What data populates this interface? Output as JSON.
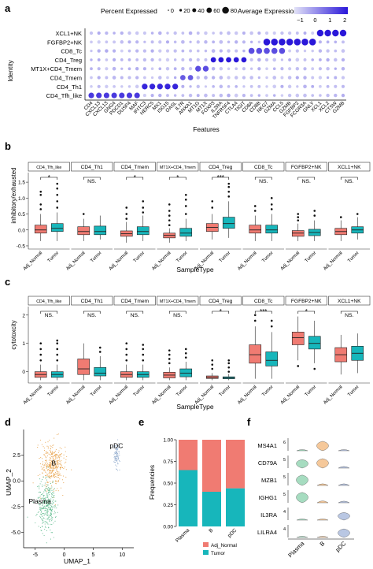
{
  "panels": {
    "a": {
      "letter": "a",
      "legend_pct_title": "Percent Expressed",
      "legend_pct_values": [
        "0",
        "20",
        "40",
        "60",
        "80"
      ],
      "legend_avg_title": "Average Expression",
      "legend_avg_ticks": [
        "−1",
        "0",
        "1",
        "2"
      ],
      "ylabel": "Identity",
      "xlabel": "Features",
      "rows": [
        "XCL1+NK",
        "FGFBP2+NK",
        "CD8_Tc",
        "CD4_Treg",
        "MT1X+CD4_Tmem",
        "CD4_Tmem",
        "CD4_Th1",
        "CD4_Tfh_like"
      ],
      "features": [
        "CD4",
        "CXCL13",
        "CXCL13",
        "GNG4",
        "PDCD1",
        "DUSP4",
        "MAF",
        "IFITC3",
        "HERC5",
        "MX1",
        "ISG15",
        "OASL",
        "IL7R",
        "ANXA1",
        "MT1G",
        "MT1X",
        "FOXP3",
        "IL2RA",
        "TNFRSF4",
        "CTLA4",
        "TIGIT",
        "CD8A",
        "CD8B",
        "NKG7",
        "GZMA",
        "CCL5",
        "GZMB",
        "FGFBP2",
        "FCGR3A",
        "GNLY",
        "XCL1",
        "XCL2",
        "CTSW",
        "GZMB"
      ],
      "colors": {
        "low": "#e2e2f7",
        "high": "#2a17d9"
      }
    },
    "b": {
      "letter": "b",
      "ylabel": "inhibitory/exhausted",
      "xlabel": "SampleType",
      "yticks": [
        "-0.5",
        "0.0",
        "0.5",
        "1.0",
        "1.5"
      ],
      "xticks": [
        "Adj_Normal",
        "Tumor"
      ],
      "facets": [
        {
          "label": "CD4_Tfh_like",
          "sig": "*"
        },
        {
          "label": "CD4_Th1",
          "sig": "NS."
        },
        {
          "label": "CD4_Tmem",
          "sig": "*"
        },
        {
          "label": "MT1X+CD4_Tmem",
          "sig": "*"
        },
        {
          "label": "CD4_Treg",
          "sig": "***"
        },
        {
          "label": "CD8_Tc",
          "sig": "NS."
        },
        {
          "label": "FGFBP2+NK",
          "sig": "NS."
        },
        {
          "label": "XCL1+NK",
          "sig": "NS."
        }
      ]
    },
    "c": {
      "letter": "c",
      "ylabel": "cytotoxcity",
      "xlabel": "SampleType",
      "yticks": [
        "0",
        "1",
        "2"
      ],
      "xticks": [
        "Adj_Normal",
        "Tumor"
      ],
      "facets": [
        {
          "label": "CD4_Tfh_like",
          "sig": "NS."
        },
        {
          "label": "CD4_Th1",
          "sig": "NS."
        },
        {
          "label": "CD4_Tmem",
          "sig": "NS."
        },
        {
          "label": "MT1X+CD4_Tmem",
          "sig": "NS."
        },
        {
          "label": "CD4_Treg",
          "sig": "*"
        },
        {
          "label": "CD8_Tc",
          "sig": "***"
        },
        {
          "label": "FGFBP2+NK",
          "sig": "*"
        },
        {
          "label": "XCL1+NK",
          "sig": "NS."
        }
      ]
    },
    "d": {
      "letter": "d",
      "xlabel": "UMAP_1",
      "ylabel": "UMAP_2",
      "xticks": [
        "-5",
        "0",
        "5",
        "10"
      ],
      "yticks": [
        "-5.0",
        "-2.5",
        "0.0",
        "2.5"
      ],
      "clusters": [
        "B",
        "Plasma",
        "pDC"
      ]
    },
    "e": {
      "letter": "e",
      "ylabel": "Frequencies",
      "yticks": [
        "0.00",
        "0.25",
        "0.50",
        "0.75",
        "1.00"
      ],
      "legend": [
        "Adj_Normal",
        "Tumor"
      ]
    },
    "f": {
      "letter": "f",
      "genes": [
        "MS4A1",
        "CD79A",
        "MZB1",
        "IGHG1",
        "IL3RA",
        "LILRA4"
      ],
      "scales": [
        "6",
        "5",
        "5",
        "5",
        "4",
        "4"
      ],
      "xticks": [
        "Plasma",
        "B",
        "pDC"
      ]
    }
  },
  "chart_data": [
    {
      "panel": "a",
      "type": "heatmap",
      "subtype": "dotplot",
      "y_categories": [
        "XCL1+NK",
        "FGFBP2+NK",
        "CD8_Tc",
        "CD4_Treg",
        "MT1X+CD4_Tmem",
        "CD4_Tmem",
        "CD4_Th1",
        "CD4_Tfh_like"
      ],
      "x_categories": [
        "CD4",
        "CXCL13",
        "CXCL13",
        "GNG4",
        "PDCD1",
        "DUSP4",
        "MAF",
        "IFITC3",
        "HERC5",
        "MX1",
        "ISG15",
        "OASL",
        "IL7R",
        "ANXA1",
        "MT1G",
        "MT1X",
        "FOXP3",
        "IL2RA",
        "TNFRSF4",
        "CTLA4",
        "TIGIT",
        "CD8A",
        "CD8B",
        "NKG7",
        "GZMA",
        "CCL5",
        "GZMB",
        "FGFBP2",
        "FCGR3A",
        "GNLY",
        "XCL1",
        "XCL2",
        "CTSW",
        "GZMB"
      ],
      "highlights": [
        {
          "row": "CD4_Tfh_like",
          "cols": [
            0,
            1,
            2,
            3,
            4,
            5,
            6
          ],
          "avg": 1.5,
          "pct": 50
        },
        {
          "row": "CD4_Th1",
          "cols": [
            7,
            8,
            9,
            10,
            11
          ],
          "avg": 1.8,
          "pct": 55
        },
        {
          "row": "CD4_Tmem",
          "cols": [
            12,
            13
          ],
          "avg": 1.0,
          "pct": 45
        },
        {
          "row": "MT1X+CD4_Tmem",
          "cols": [
            14,
            15
          ],
          "avg": 1.2,
          "pct": 55
        },
        {
          "row": "CD4_Treg",
          "cols": [
            16,
            17,
            18,
            19,
            20
          ],
          "avg": 2.0,
          "pct": 45
        },
        {
          "row": "CD8_Tc",
          "cols": [
            21,
            22,
            23,
            24,
            25
          ],
          "avg": 1.2,
          "pct": 60
        },
        {
          "row": "FGFBP2+NK",
          "cols": [
            23,
            24,
            25,
            26,
            27,
            28,
            29
          ],
          "avg": 2.0,
          "pct": 80
        },
        {
          "row": "XCL1+NK",
          "cols": [
            30,
            31,
            32,
            33
          ],
          "avg": 2.0,
          "pct": 75
        }
      ],
      "color_range": [
        -1,
        2
      ],
      "size_range": [
        0,
        80
      ]
    },
    {
      "panel": "b",
      "type": "box",
      "ylabel": "inhibitory/exhausted",
      "ylim": [
        -0.6,
        1.8
      ],
      "series_names": [
        "Adj_Normal",
        "Tumor"
      ],
      "facets": [
        {
          "label": "CD4_Tfh_like",
          "normal": [
            -0.35,
            -0.1,
            0.0,
            0.15,
            0.5
          ],
          "tumor": [
            -0.35,
            -0.05,
            0.05,
            0.2,
            0.55
          ],
          "out_n": [
            0.65,
            0.8,
            1.1,
            1.2
          ],
          "out_t": [
            0.7,
            0.9,
            1.1,
            1.3,
            1.45
          ]
        },
        {
          "label": "CD4_Th1",
          "normal": [
            -0.35,
            -0.15,
            -0.05,
            0.1,
            0.35
          ],
          "tumor": [
            -0.3,
            -0.15,
            -0.05,
            0.12,
            0.45
          ],
          "out_n": [
            0.5
          ],
          "out_t": []
        },
        {
          "label": "CD4_Tmem",
          "normal": [
            -0.4,
            -0.2,
            -0.12,
            -0.03,
            0.25
          ],
          "tumor": [
            -0.35,
            -0.15,
            -0.05,
            0.1,
            0.45
          ],
          "out_n": [
            0.35,
            0.5,
            0.7
          ],
          "out_t": [
            0.55,
            0.7,
            0.9
          ]
        },
        {
          "label": "MT1X+CD4_Tmem",
          "normal": [
            -0.4,
            -0.25,
            -0.17,
            -0.1,
            0.05
          ],
          "tumor": [
            -0.35,
            -0.2,
            -0.1,
            0.05,
            0.35
          ],
          "out_n": [
            0.15,
            0.3,
            0.45,
            0.6,
            0.8
          ],
          "out_t": [
            0.5,
            0.75,
            0.95,
            1.1
          ]
        },
        {
          "label": "CD4_Treg",
          "normal": [
            -0.3,
            -0.05,
            0.08,
            0.2,
            0.5
          ],
          "tumor": [
            -0.25,
            0.05,
            0.2,
            0.4,
            0.9
          ],
          "out_n": [
            0.7,
            0.9
          ],
          "out_t": [
            1.05,
            1.2,
            1.35,
            1.45
          ]
        },
        {
          "label": "CD8_Tc",
          "normal": [
            -0.35,
            -0.1,
            0.0,
            0.15,
            0.45
          ],
          "tumor": [
            -0.35,
            -0.1,
            0.0,
            0.15,
            0.5
          ],
          "out_n": [
            0.6,
            0.75
          ],
          "out_t": [
            0.65,
            0.8,
            1.0
          ]
        },
        {
          "label": "FGFBP2+NK",
          "normal": [
            -0.35,
            -0.2,
            -0.1,
            -0.02,
            0.2
          ],
          "tumor": [
            -0.35,
            -0.18,
            -0.08,
            0.02,
            0.3
          ],
          "out_n": [
            0.3,
            0.4,
            0.5
          ],
          "out_t": [
            0.45,
            0.6
          ]
        },
        {
          "label": "XCL1+NK",
          "normal": [
            -0.35,
            -0.15,
            -0.05,
            0.05,
            0.3
          ],
          "tumor": [
            -0.3,
            -0.1,
            0.0,
            0.1,
            0.4
          ],
          "out_n": [
            0.4
          ],
          "out_t": [
            0.5
          ]
        }
      ]
    },
    {
      "panel": "c",
      "type": "box",
      "ylabel": "cytotoxcity",
      "ylim": [
        -0.4,
        2.3
      ],
      "series_names": [
        "Adj_Normal",
        "Tumor"
      ],
      "facets": [
        {
          "label": "CD4_Tfh_like",
          "normal": [
            -0.3,
            -0.2,
            -0.1,
            0.0,
            0.25
          ],
          "tumor": [
            -0.3,
            -0.2,
            -0.1,
            0.0,
            0.25
          ],
          "out_n": [
            0.4,
            0.6,
            0.8,
            1.0
          ],
          "out_t": [
            0.4,
            0.6,
            0.8,
            1.0,
            1.1
          ]
        },
        {
          "label": "CD4_Th1",
          "normal": [
            -0.3,
            -0.1,
            0.1,
            0.45,
            1.0
          ],
          "tumor": [
            -0.3,
            -0.15,
            -0.05,
            0.15,
            0.55
          ],
          "out_n": [],
          "out_t": [
            0.7,
            0.85
          ]
        },
        {
          "label": "CD4_Tmem",
          "normal": [
            -0.3,
            -0.2,
            -0.1,
            0.0,
            0.25
          ],
          "tumor": [
            -0.3,
            -0.2,
            -0.1,
            0.0,
            0.25
          ],
          "out_n": [
            0.4,
            0.6,
            0.8,
            1.0
          ],
          "out_t": [
            0.4,
            0.6,
            0.8,
            0.95
          ]
        },
        {
          "label": "MT1X+CD4_Tmem",
          "normal": [
            -0.3,
            -0.22,
            -0.12,
            -0.02,
            0.15
          ],
          "tumor": [
            -0.3,
            -0.18,
            -0.05,
            0.1,
            0.35
          ],
          "out_n": [
            0.3,
            0.45,
            0.6,
            0.75
          ],
          "out_t": [
            0.5,
            0.65,
            0.8
          ]
        },
        {
          "label": "CD4_Treg",
          "normal": [
            -0.3,
            -0.24,
            -0.2,
            -0.15,
            -0.05
          ],
          "tumor": [
            -0.3,
            -0.25,
            -0.22,
            -0.18,
            -0.08
          ],
          "out_n": [
            0.1,
            0.25,
            0.4
          ],
          "out_t": [
            0.0,
            0.15,
            0.3,
            0.4
          ]
        },
        {
          "label": "CD8_Tc",
          "normal": [
            -0.25,
            0.3,
            0.6,
            0.95,
            1.6
          ],
          "tumor": [
            -0.25,
            0.2,
            0.4,
            0.7,
            1.4
          ],
          "out_n": [
            1.8,
            2.0
          ],
          "out_t": [
            1.6,
            1.8
          ]
        },
        {
          "label": "FGFBP2+NK",
          "normal": [
            0.4,
            0.95,
            1.2,
            1.4,
            1.95
          ],
          "tumor": [
            0.3,
            0.8,
            1.0,
            1.25,
            1.8
          ],
          "out_n": [
            0.2
          ],
          "out_t": [
            0.1
          ]
        },
        {
          "label": "XCL1+NK",
          "normal": [
            -0.1,
            0.35,
            0.6,
            0.85,
            1.3
          ],
          "tumor": [
            -0.05,
            0.4,
            0.65,
            0.9,
            1.35
          ],
          "out_n": [],
          "out_t": []
        }
      ]
    },
    {
      "panel": "d",
      "type": "scatter",
      "xlabel": "UMAP_1",
      "ylabel": "UMAP_2",
      "xlim": [
        -7,
        12
      ],
      "ylim": [
        -6.5,
        5
      ],
      "clusters": [
        {
          "name": "B",
          "color": "#e8a24a",
          "center": [
            -2,
            1.5
          ],
          "spread": [
            1.8,
            2.0
          ]
        },
        {
          "name": "Plasma",
          "color": "#5bb98b",
          "center": [
            -3,
            -2.5
          ],
          "spread": [
            1.5,
            2.2
          ]
        },
        {
          "name": "pDC",
          "color": "#8fa9cc",
          "center": [
            9,
            2.5
          ],
          "spread": [
            0.5,
            1.2
          ]
        }
      ]
    },
    {
      "panel": "e",
      "type": "bar",
      "stacked": true,
      "categories": [
        "Plasma",
        "B",
        "pDC"
      ],
      "series": [
        {
          "name": "Adj_Normal",
          "values": [
            0.35,
            0.6,
            0.56
          ]
        },
        {
          "name": "Tumor",
          "values": [
            0.65,
            0.4,
            0.44
          ]
        }
      ],
      "ylim": [
        0,
        1
      ]
    },
    {
      "panel": "f",
      "type": "area",
      "subtype": "violin",
      "genes": [
        "MS4A1",
        "CD79A",
        "MZB1",
        "IGHG1",
        "IL3RA",
        "LILRA4"
      ],
      "groups": [
        "Plasma",
        "B",
        "pDC"
      ],
      "group_colors": [
        "#a6dcc0",
        "#f5c89a",
        "#b9c7e3"
      ],
      "expression": [
        [
          0.0,
          3.5,
          0.0
        ],
        [
          3.0,
          3.5,
          0.5
        ],
        [
          4.0,
          0.5,
          0.5
        ],
        [
          4.0,
          0.8,
          0.5
        ],
        [
          0.0,
          0.0,
          2.5
        ],
        [
          0.0,
          0.0,
          3.0
        ]
      ]
    }
  ]
}
